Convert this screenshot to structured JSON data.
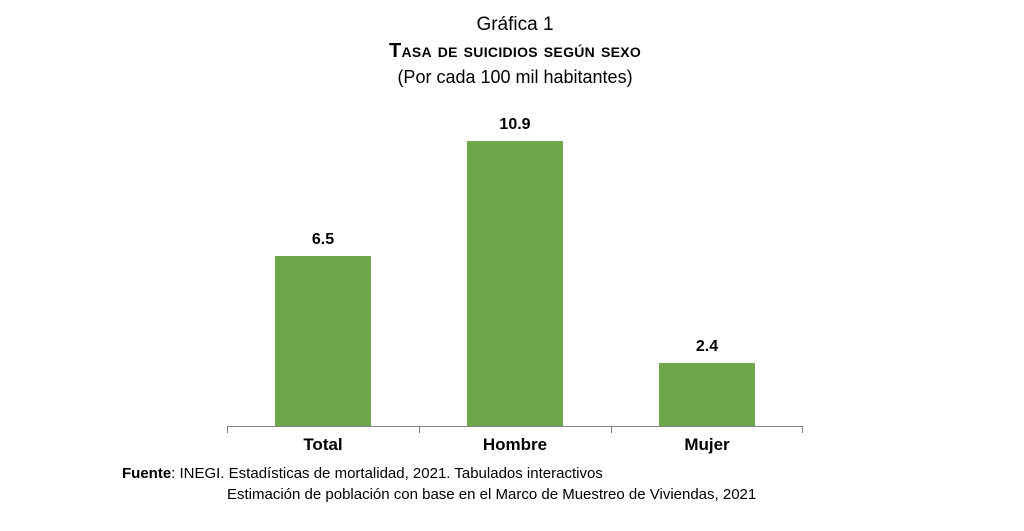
{
  "page": {
    "background": "#ffffff"
  },
  "chart_data": {
    "type": "bar",
    "label": "Gráfica 1",
    "title": "Tasa de suicidios según sexo",
    "title_rendered": "TASA DE SUICIDIOS SEGÚN SEXO",
    "subtitle": "(Por cada 100 mil habitantes)",
    "categories": [
      "Total",
      "Hombre",
      "Mujer"
    ],
    "values": [
      6.5,
      10.9,
      2.4
    ],
    "value_labels": [
      "6.5",
      "10.9",
      "2.4"
    ],
    "xlabel": "",
    "ylabel": "",
    "ylim": [
      0,
      12
    ],
    "grid": false,
    "legend": "none",
    "bar_color": "#6FA84C",
    "axis_color": "#808080",
    "value_label_color": "#000000"
  },
  "source": {
    "prefix": "Fuente",
    "line1_rest": ": INEGI. Estadísticas de mortalidad, 2021. Tabulados interactivos",
    "line2": "Estimación de población con base en el Marco de Muestreo de Viviendas, 2021"
  }
}
